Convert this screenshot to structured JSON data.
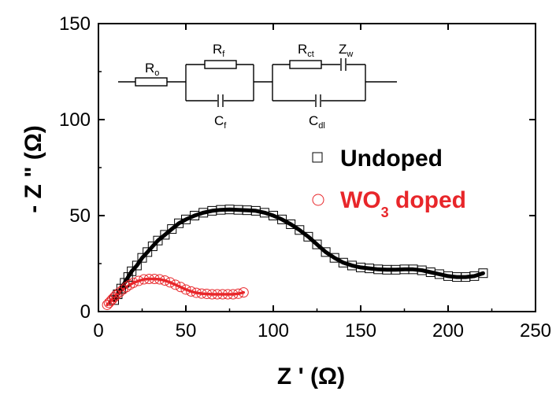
{
  "chart_data": {
    "type": "scatter",
    "xlabel": "Z ' (Ω)",
    "ylabel": "- Z \" (Ω)",
    "xlim": [
      0,
      250
    ],
    "ylim": [
      0,
      150
    ],
    "xticks": [
      "0",
      "50",
      "100",
      "150",
      "200",
      "250"
    ],
    "yticks": [
      "0",
      "50",
      "100",
      "150"
    ],
    "grid": false,
    "legend_position": "right",
    "series": [
      {
        "name": "Undoped",
        "marker": "open-square",
        "color": "#000000",
        "fit_line_color": "#000000",
        "x": [
          9,
          11,
          13,
          15,
          17,
          19,
          22,
          25,
          28,
          31,
          34,
          38,
          42,
          46,
          50,
          55,
          60,
          65,
          70,
          75,
          80,
          85,
          90,
          95,
          100,
          105,
          110,
          115,
          120,
          125,
          130,
          135,
          140,
          145,
          150,
          155,
          160,
          165,
          170,
          175,
          180,
          185,
          190,
          195,
          200,
          205,
          210,
          215,
          220
        ],
        "y": [
          6,
          9,
          12,
          15,
          18,
          21,
          24,
          28,
          31,
          34,
          37,
          40,
          43,
          46,
          48,
          50,
          51.5,
          52.5,
          53,
          53.2,
          53,
          52.8,
          52.5,
          51.5,
          50,
          48,
          45.5,
          42.5,
          39,
          35,
          31,
          28,
          25.5,
          24,
          23,
          22.5,
          22,
          21.8,
          21.8,
          22,
          22,
          21.5,
          20.5,
          19.5,
          18.5,
          18,
          18,
          18.5,
          20
        ]
      },
      {
        "name": "WO3 doped",
        "marker": "open-circle",
        "color": "#e8262a",
        "fit_line_color": "#e8262a",
        "x": [
          5,
          6,
          7,
          8,
          9,
          10,
          12,
          14,
          16,
          18,
          20,
          23,
          26,
          29,
          32,
          35,
          38,
          41,
          44,
          47,
          50,
          53,
          56,
          59,
          62,
          65,
          68,
          71,
          74,
          77,
          80,
          83
        ],
        "y": [
          3.5,
          4.5,
          5.5,
          6.5,
          7.5,
          8.5,
          10,
          11.5,
          12.8,
          14,
          15,
          16,
          16.8,
          17,
          17,
          16.8,
          16.2,
          15.2,
          14,
          12.8,
          11.5,
          10.5,
          9.8,
          9.4,
          9.2,
          9,
          9,
          9,
          9,
          9,
          9.3,
          10
        ]
      }
    ],
    "legend": {
      "entries": [
        {
          "label_main": "Undoped",
          "label_sub": "",
          "label_tail": ""
        },
        {
          "label_main": "WO",
          "label_sub": "3",
          "label_tail": " doped"
        }
      ]
    },
    "inset_circuit": {
      "labels": {
        "ro_main": "R",
        "ro_sub": "o",
        "rf_main": "R",
        "rf_sub": "f",
        "cf_main": "C",
        "cf_sub": "f",
        "rct_main": "R",
        "rct_sub": "ct",
        "zw_main": "Z",
        "zw_sub": "w",
        "cdl_main": "C",
        "cdl_sub": "dl"
      }
    }
  }
}
